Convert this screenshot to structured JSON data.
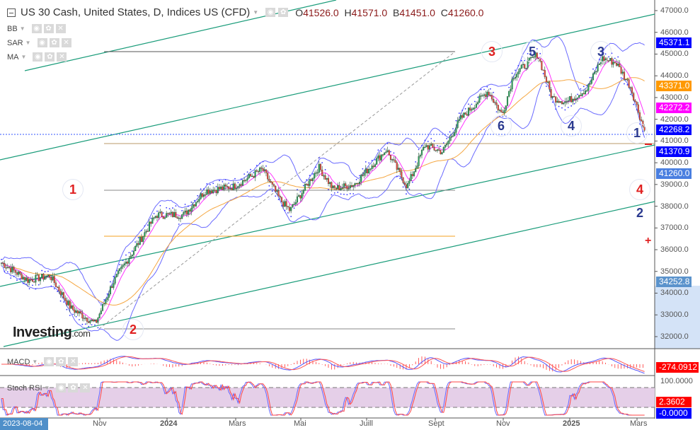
{
  "header": {
    "title": "US 30 Cash, United States, D, Indices US (CFD)",
    "open_label": "O",
    "open": "41526.0",
    "high_label": "H",
    "high": "41571.0",
    "low_label": "B",
    "low": "41451.0",
    "close_label": "C",
    "close": "41260.0"
  },
  "indicators": [
    {
      "name": "BB"
    },
    {
      "name": "SAR"
    },
    {
      "name": "MA"
    }
  ],
  "sub_panels": {
    "macd": {
      "name": "MACD",
      "value": "-274.0912"
    },
    "stoch": {
      "name": "Stoch RSI",
      "value1": "2.3602",
      "value2": "-0.0000",
      "upper": "100.0000"
    }
  },
  "price_badges": [
    {
      "value": "45371.1",
      "color": "#0000ff"
    },
    {
      "value": "43371.0",
      "color": "#ff9900"
    },
    {
      "value": "42272.2",
      "color": "#ff00ff"
    },
    {
      "value": "42268.2",
      "color": "#0000ff"
    },
    {
      "value": "41370.9",
      "color": "#0000ff"
    },
    {
      "value": "41260.0",
      "color": "#4a7fe0"
    },
    {
      "value": "34252.8",
      "color": "#5b93cc"
    }
  ],
  "price_ticks": [
    "47000.0",
    "46000.0",
    "45000.0",
    "44000.0",
    "43000.0",
    "42000.0",
    "41000.0",
    "40000.0",
    "39000.0",
    "38000.0",
    "37000.0",
    "36000.0",
    "35000.0",
    "34000.0",
    "33000.0",
    "32000.0"
  ],
  "time_axis": {
    "start": "2023-08-04",
    "labels": [
      "Nov",
      "2024",
      "Mars",
      "Mai",
      "Juill",
      "Sept",
      "Nov",
      "2025",
      "Mars"
    ]
  },
  "logo": {
    "text": "Investing",
    "suffix": ".com"
  },
  "waves": [
    {
      "label": "1",
      "color": "#e02020"
    },
    {
      "label": "2",
      "color": "#e02020"
    },
    {
      "label": "3",
      "color": "#e02020"
    },
    {
      "label": "5",
      "color": "#2b3a8f"
    },
    {
      "label": "3",
      "color": "#2b3a8f"
    },
    {
      "label": "6",
      "color": "#2b3a8f"
    },
    {
      "label": "4",
      "color": "#2b3a8f"
    },
    {
      "label": "1",
      "color": "#2b3a8f"
    },
    {
      "label": "4",
      "color": "#e02020"
    },
    {
      "label": "2",
      "color": "#2b3a8f"
    }
  ],
  "chart_data": {
    "type": "candlestick",
    "title": "US 30 Cash, United States, D",
    "ylim": [
      31500,
      47500
    ],
    "approx_closes": [
      [
        "2023-08-04",
        35400
      ],
      [
        "2023-08-28",
        34600
      ],
      [
        "2023-09-17",
        34800
      ],
      [
        "2023-10-06",
        33300
      ],
      [
        "2023-10-28",
        32600
      ],
      [
        "2023-11-13",
        34500
      ],
      [
        "2023-12-02",
        36000
      ],
      [
        "2023-12-22",
        37600
      ],
      [
        "2024-01-16",
        37600
      ],
      [
        "2024-02-04",
        38700
      ],
      [
        "2024-03-01",
        38900
      ],
      [
        "2024-03-27",
        39700
      ],
      [
        "2024-04-12",
        38300
      ],
      [
        "2024-04-21",
        37800
      ],
      [
        "2024-05-17",
        39800
      ],
      [
        "2024-05-30",
        38800
      ],
      [
        "2024-06-18",
        39000
      ],
      [
        "2024-07-17",
        40600
      ],
      [
        "2024-08-05",
        38900
      ],
      [
        "2024-08-21",
        40800
      ],
      [
        "2024-09-06",
        40500
      ],
      [
        "2024-09-22",
        42000
      ],
      [
        "2024-10-17",
        43300
      ],
      [
        "2024-10-30",
        42200
      ],
      [
        "2024-11-09",
        44000
      ],
      [
        "2024-12-01",
        45000
      ],
      [
        "2024-12-14",
        43000
      ],
      [
        "2024-12-27",
        42800
      ],
      [
        "2025-01-15",
        43400
      ],
      [
        "2025-01-28",
        44800
      ],
      [
        "2025-02-10",
        44600
      ],
      [
        "2025-02-23",
        43500
      ],
      [
        "2025-03-09",
        41260
      ]
    ],
    "colors": {
      "up": "#26a65b",
      "down": "#e74c3c",
      "ma_fast": "#ff33ff",
      "ma_slow": "#f5a742",
      "bb": "#6a6aff",
      "sar": "#3333ff",
      "channel": "#1a9c7a"
    }
  }
}
